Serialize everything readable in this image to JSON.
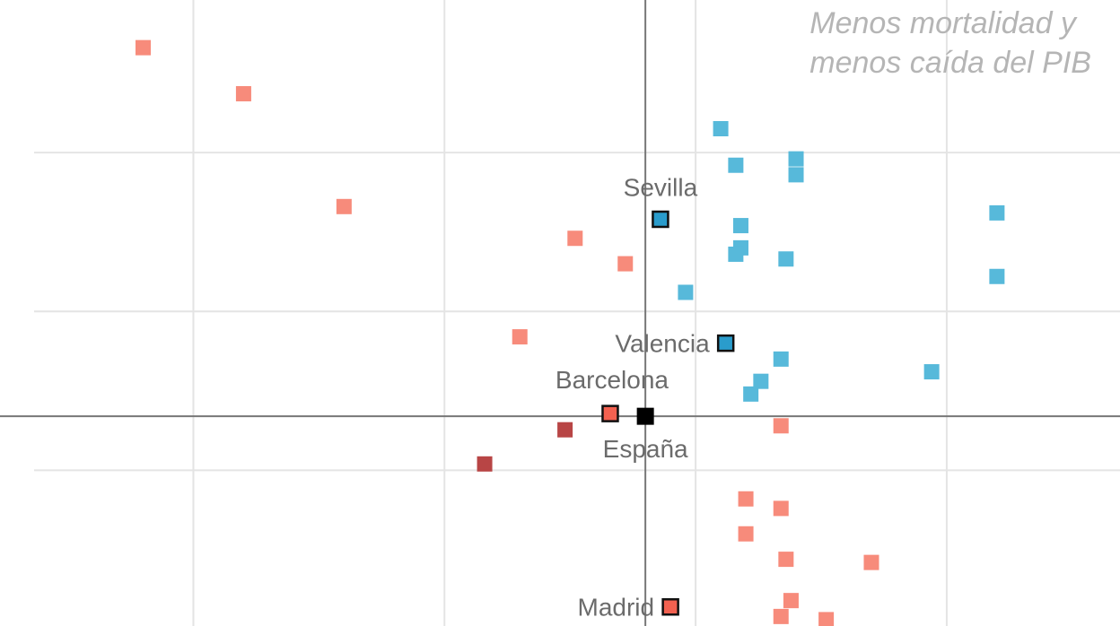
{
  "chart_data": {
    "type": "scatter",
    "title": "",
    "xlabel": "",
    "ylabel": "",
    "xlim": [
      -25.7,
      18.9
    ],
    "ylim": [
      -13.2,
      26.2
    ],
    "grid": true,
    "grid_x": [
      -18,
      -8,
      2,
      12
    ],
    "grid_y": [
      16.6,
      6.6,
      -3.4
    ],
    "reference": {
      "x": 0,
      "y": 0
    },
    "annotation": [
      "Menos mortalidad y",
      "menos caída del PIB"
    ],
    "colors": {
      "more_drop": "#f78b7b",
      "dark": "#b84545",
      "less_drop": "#57b9da",
      "highlight_red": "#f26150",
      "highlight_blue": "#2a9ccc",
      "spain": "#000000",
      "axis": "#777777",
      "grid": "#e4e4e4"
    },
    "series": [
      {
        "name": "salmon",
        "color": "#f78b7b",
        "points": [
          [
            -20.0,
            23.2
          ],
          [
            -16.0,
            20.3
          ],
          [
            -12.0,
            13.2
          ],
          [
            -2.8,
            11.2
          ],
          [
            -0.8,
            9.6
          ],
          [
            -5.0,
            5.0
          ],
          [
            5.4,
            -0.6
          ],
          [
            4.0,
            -5.2
          ],
          [
            5.4,
            -5.8
          ],
          [
            4.0,
            -7.4
          ],
          [
            5.6,
            -9.0
          ],
          [
            9.0,
            -9.2
          ],
          [
            5.8,
            -11.6
          ],
          [
            5.4,
            -12.6
          ],
          [
            7.2,
            -12.8
          ]
        ]
      },
      {
        "name": "dark",
        "color": "#b84545",
        "points": [
          [
            -3.2,
            -0.85
          ],
          [
            -6.4,
            -3.0
          ]
        ]
      },
      {
        "name": "blue",
        "color": "#57b9da",
        "points": [
          [
            3.0,
            18.1
          ],
          [
            3.6,
            15.8
          ],
          [
            6.0,
            16.2
          ],
          [
            6.0,
            15.2
          ],
          [
            3.8,
            12.0
          ],
          [
            3.8,
            10.6
          ],
          [
            3.6,
            10.2
          ],
          [
            5.6,
            9.9
          ],
          [
            14.0,
            12.8
          ],
          [
            14.0,
            8.8
          ],
          [
            1.6,
            7.8
          ],
          [
            5.4,
            3.6
          ],
          [
            4.6,
            2.2
          ],
          [
            4.2,
            1.4
          ],
          [
            11.4,
            2.8
          ]
        ]
      }
    ],
    "highlighted": [
      {
        "label": "Sevilla",
        "x": 0.6,
        "y": 12.4,
        "color": "#2a9ccc",
        "label_pos": "above"
      },
      {
        "label": "Valencia",
        "x": 3.2,
        "y": 4.6,
        "color": "#2a9ccc",
        "label_pos": "left"
      },
      {
        "label": "Barcelona",
        "x": -1.4,
        "y": 0.17,
        "color": "#f26150",
        "label_pos": "above"
      },
      {
        "label": "Madrid",
        "x": 1.0,
        "y": -12.0,
        "color": "#f26150",
        "label_pos": "left"
      },
      {
        "label": "España",
        "x": 0,
        "y": 0,
        "color": "#000000",
        "label_pos": "below"
      }
    ]
  }
}
